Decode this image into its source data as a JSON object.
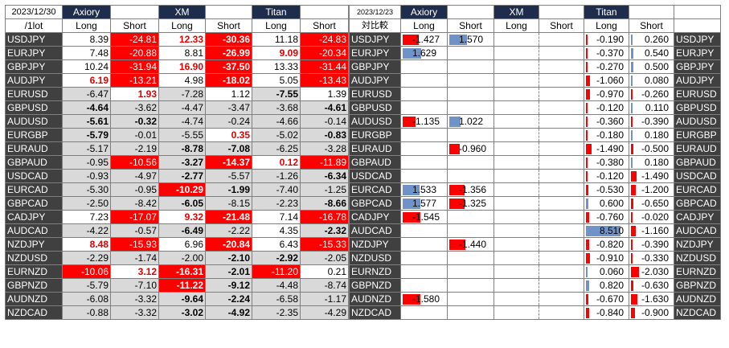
{
  "left": {
    "date": "2023/12/30",
    "unit": "/1lot",
    "brokers": [
      "Axiory",
      "XM",
      "Titan"
    ],
    "long_label": "Long",
    "short_label": "Short",
    "rows": [
      {
        "pair": "USDJPY",
        "v": [
          "8.39",
          "-24.81",
          "12.33",
          "-30.36",
          "11.18",
          "-24.83"
        ],
        "s": [
          "",
          "r",
          "rt",
          "rb",
          "",
          "r"
        ]
      },
      {
        "pair": "EURJPY",
        "v": [
          "7.48",
          "-20.88",
          "8.81",
          "-26.99",
          "9.09",
          "-20.34"
        ],
        "s": [
          "",
          "r",
          "",
          "rb",
          "rt",
          "r"
        ]
      },
      {
        "pair": "GBPJPY",
        "v": [
          "10.24",
          "-31.94",
          "16.90",
          "-37.50",
          "13.33",
          "-31.44"
        ],
        "s": [
          "",
          "r",
          "rt",
          "rb",
          "",
          "r"
        ]
      },
      {
        "pair": "AUDJPY",
        "v": [
          "6.19",
          "-13.21",
          "4.98",
          "-18.02",
          "5.05",
          "-13.43"
        ],
        "s": [
          "rt",
          "r",
          "",
          "rb",
          "",
          "r"
        ]
      },
      {
        "pair": "EURUSD",
        "v": [
          "-6.47",
          "1.93",
          "-7.28",
          "1.12",
          "-7.55",
          "1.39"
        ],
        "s": [
          "g",
          "rtw",
          "g",
          "w",
          "gb",
          "w"
        ]
      },
      {
        "pair": "GBPUSD",
        "v": [
          "-4.64",
          "-3.62",
          "-4.47",
          "-3.47",
          "-3.68",
          "-4.61"
        ],
        "s": [
          "gb",
          "g",
          "g",
          "g",
          "g",
          "gb"
        ]
      },
      {
        "pair": "AUDUSD",
        "v": [
          "-5.61",
          "-0.32",
          "-4.74",
          "-0.24",
          "-4.66",
          "-0.14"
        ],
        "s": [
          "gb",
          "gb",
          "g",
          "g",
          "g",
          "g"
        ]
      },
      {
        "pair": "EURGBP",
        "v": [
          "-5.79",
          "-0.01",
          "-5.55",
          "0.35",
          "-5.02",
          "-0.83"
        ],
        "s": [
          "gb",
          "g",
          "g",
          "rtw",
          "g",
          "gb"
        ]
      },
      {
        "pair": "EURAUD",
        "v": [
          "-5.17",
          "-2.19",
          "-8.78",
          "-7.08",
          "-6.25",
          "-3.28"
        ],
        "s": [
          "g",
          "g",
          "gb",
          "gb",
          "g",
          "g"
        ]
      },
      {
        "pair": "GBPAUD",
        "v": [
          "-0.95",
          "-10.56",
          "-3.27",
          "-14.37",
          "0.12",
          "-11.89"
        ],
        "s": [
          "g",
          "r",
          "gb",
          "rb",
          "rtw",
          "r"
        ]
      },
      {
        "pair": "USDCAD",
        "v": [
          "-0.93",
          "-4.97",
          "-2.77",
          "-5.57",
          "-1.26",
          "-6.34"
        ],
        "s": [
          "g",
          "g",
          "gb",
          "g",
          "g",
          "gb"
        ]
      },
      {
        "pair": "EURCAD",
        "v": [
          "-5.30",
          "-0.95",
          "-10.29",
          "-1.99",
          "-7.40",
          "-1.25"
        ],
        "s": [
          "g",
          "g",
          "rb",
          "gb",
          "g",
          "g"
        ]
      },
      {
        "pair": "GBPCAD",
        "v": [
          "-2.50",
          "-8.42",
          "-6.05",
          "-8.15",
          "-2.23",
          "-8.66"
        ],
        "s": [
          "g",
          "g",
          "gb",
          "g",
          "g",
          "gb"
        ]
      },
      {
        "pair": "CADJPY",
        "v": [
          "7.23",
          "-17.07",
          "9.32",
          "-21.48",
          "7.14",
          "-16.78"
        ],
        "s": [
          "",
          "r",
          "rt",
          "rb",
          "",
          "r"
        ]
      },
      {
        "pair": "AUDCAD",
        "v": [
          "-4.22",
          "-0.57",
          "-6.49",
          "-2.22",
          "4.35",
          "-2.32"
        ],
        "s": [
          "g",
          "g",
          "gb",
          "g",
          "w",
          "gb"
        ]
      },
      {
        "pair": "NZDJPY",
        "v": [
          "8.48",
          "-15.93",
          "6.96",
          "-20.84",
          "6.43",
          "-15.33"
        ],
        "s": [
          "rt",
          "r",
          "",
          "rb",
          "",
          "r"
        ]
      },
      {
        "pair": "NZDUSD",
        "v": [
          "-2.29",
          "-1.74",
          "-2.00",
          "-2.10",
          "-2.92",
          "-2.05"
        ],
        "s": [
          "g",
          "g",
          "g",
          "gb",
          "gb",
          "g"
        ]
      },
      {
        "pair": "EURNZD",
        "v": [
          "-10.06",
          "3.12",
          "-16.31",
          "-2.01",
          "-11.20",
          "0.21"
        ],
        "s": [
          "r",
          "rtw",
          "rb",
          "gb",
          "r",
          "w"
        ]
      },
      {
        "pair": "GBPNZD",
        "v": [
          "-5.79",
          "-7.10",
          "-11.22",
          "-9.12",
          "-4.48",
          "-8.74"
        ],
        "s": [
          "g",
          "g",
          "rb",
          "gb",
          "g",
          "g"
        ]
      },
      {
        "pair": "AUDNZD",
        "v": [
          "-6.08",
          "-3.32",
          "-9.64",
          "-2.24",
          "-6.58",
          "-1.17"
        ],
        "s": [
          "g",
          "g",
          "gb",
          "gb",
          "g",
          "g"
        ]
      },
      {
        "pair": "NZDCAD",
        "v": [
          "-0.88",
          "-3.32",
          "-3.02",
          "-4.92",
          "-2.35",
          "-4.29"
        ],
        "s": [
          "g",
          "g",
          "gb",
          "gb",
          "g",
          "g"
        ]
      }
    ]
  },
  "right": {
    "date": "2023/12/23",
    "compare_label": "対比較",
    "brokers": [
      "Axiory",
      "XM",
      "Titan"
    ],
    "long_label": "Long",
    "short_label": "Short",
    "rows": [
      {
        "pair": "USDJPY",
        "ax_long": "-1.427",
        "ax_short": "1.570",
        "t_long": "-0.190",
        "t_short": "0.260"
      },
      {
        "pair": "EURJPY",
        "ax_long": "1.629",
        "ax_short": "",
        "t_long": "-0.370",
        "t_short": "0.540"
      },
      {
        "pair": "GBPJPY",
        "ax_long": "",
        "ax_short": "",
        "t_long": "-0.270",
        "t_short": "0.500"
      },
      {
        "pair": "AUDJPY",
        "ax_long": "",
        "ax_short": "",
        "t_long": "-1.060",
        "t_short": "0.080"
      },
      {
        "pair": "EURUSD",
        "ax_long": "",
        "ax_short": "",
        "t_long": "-0.970",
        "t_short": "-0.260"
      },
      {
        "pair": "GBPUSD",
        "ax_long": "",
        "ax_short": "",
        "t_long": "-0.120",
        "t_short": "0.110"
      },
      {
        "pair": "AUDUSD",
        "ax_long": "-1.135",
        "ax_short": "1.022",
        "t_long": "-0.360",
        "t_short": "-0.390"
      },
      {
        "pair": "EURGBP",
        "ax_long": "",
        "ax_short": "",
        "t_long": "-0.180",
        "t_short": "0.180"
      },
      {
        "pair": "EURAUD",
        "ax_long": "",
        "ax_short": "-0.960",
        "t_long": "-1.490",
        "t_short": "-0.500"
      },
      {
        "pair": "GBPAUD",
        "ax_long": "",
        "ax_short": "",
        "t_long": "-0.380",
        "t_short": "0.180"
      },
      {
        "pair": "USDCAD",
        "ax_long": "",
        "ax_short": "",
        "t_long": "-0.120",
        "t_short": "-1.490"
      },
      {
        "pair": "EURCAD",
        "ax_long": "1.533",
        "ax_short": "-1.356",
        "t_long": "-0.530",
        "t_short": "-1.200"
      },
      {
        "pair": "GBPCAD",
        "ax_long": "1.577",
        "ax_short": "-1.325",
        "t_long": "0.600",
        "t_short": "-0.650"
      },
      {
        "pair": "CADJPY",
        "ax_long": "-1.545",
        "ax_short": "",
        "t_long": "-0.760",
        "t_short": "-0.020"
      },
      {
        "pair": "AUDCAD",
        "ax_long": "",
        "ax_short": "",
        "t_long": "8.510",
        "t_short": "-1.160"
      },
      {
        "pair": "NZDJPY",
        "ax_long": "",
        "ax_short": "-1.440",
        "t_long": "-0.820",
        "t_short": "-0.390"
      },
      {
        "pair": "NZDUSD",
        "ax_long": "",
        "ax_short": "",
        "t_long": "-0.910",
        "t_short": "-0.330"
      },
      {
        "pair": "EURNZD",
        "ax_long": "",
        "ax_short": "",
        "t_long": "0.060",
        "t_short": "-2.030"
      },
      {
        "pair": "GBPNZD",
        "ax_long": "",
        "ax_short": "",
        "t_long": "0.820",
        "t_short": "-0.630"
      },
      {
        "pair": "AUDNZD",
        "ax_long": "-1.580",
        "ax_short": "",
        "t_long": "-0.670",
        "t_short": "-1.630"
      },
      {
        "pair": "NZDCAD",
        "ax_long": "",
        "ax_short": "",
        "t_long": "-0.840",
        "t_short": "-0.900"
      }
    ]
  },
  "colors": {
    "header": "#1f2d4d",
    "pair": "#404040",
    "negative": "#ff0000",
    "positive_bar": "#6f93c9",
    "gray": "#d9d9d9"
  }
}
